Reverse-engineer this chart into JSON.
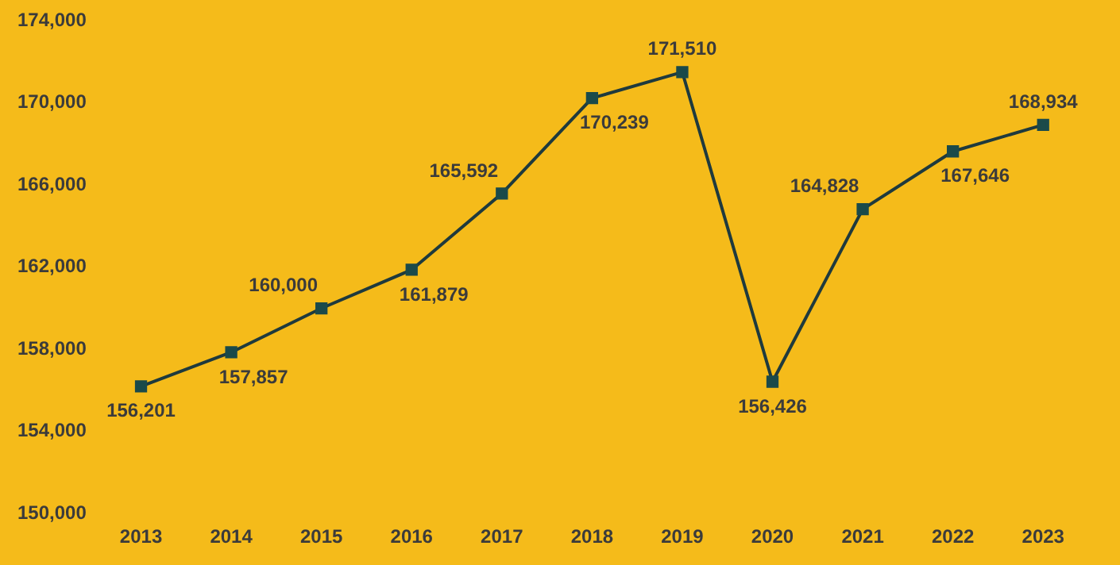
{
  "chart_data": {
    "type": "line",
    "categories": [
      "2013",
      "2014",
      "2015",
      "2016",
      "2017",
      "2018",
      "2019",
      "2020",
      "2021",
      "2022",
      "2023"
    ],
    "series": [
      {
        "color": "#1f3a3d",
        "values": [
          156201,
          157857,
          160000,
          161879,
          165592,
          170239,
          171510,
          156426,
          164828,
          167646,
          168934
        ],
        "value_labels": [
          "156,201",
          "157,857",
          "160,000",
          "161,879",
          "165,592",
          "170,239",
          "171,510",
          "156,426",
          "164,828",
          "167,646",
          "168,934"
        ]
      }
    ],
    "ylim": [
      150000,
      174000
    ],
    "yticks": [
      {
        "value": 150000,
        "label": "150,000"
      },
      {
        "value": 154000,
        "label": "154,000"
      },
      {
        "value": 158000,
        "label": "158,000"
      },
      {
        "value": 162000,
        "label": "162,000"
      },
      {
        "value": 166000,
        "label": "166,000"
      },
      {
        "value": 170000,
        "label": "170,000"
      },
      {
        "value": 174000,
        "label": "174,000"
      }
    ],
    "grid": false,
    "legend": false,
    "marker": "square",
    "line_style": "solid"
  }
}
